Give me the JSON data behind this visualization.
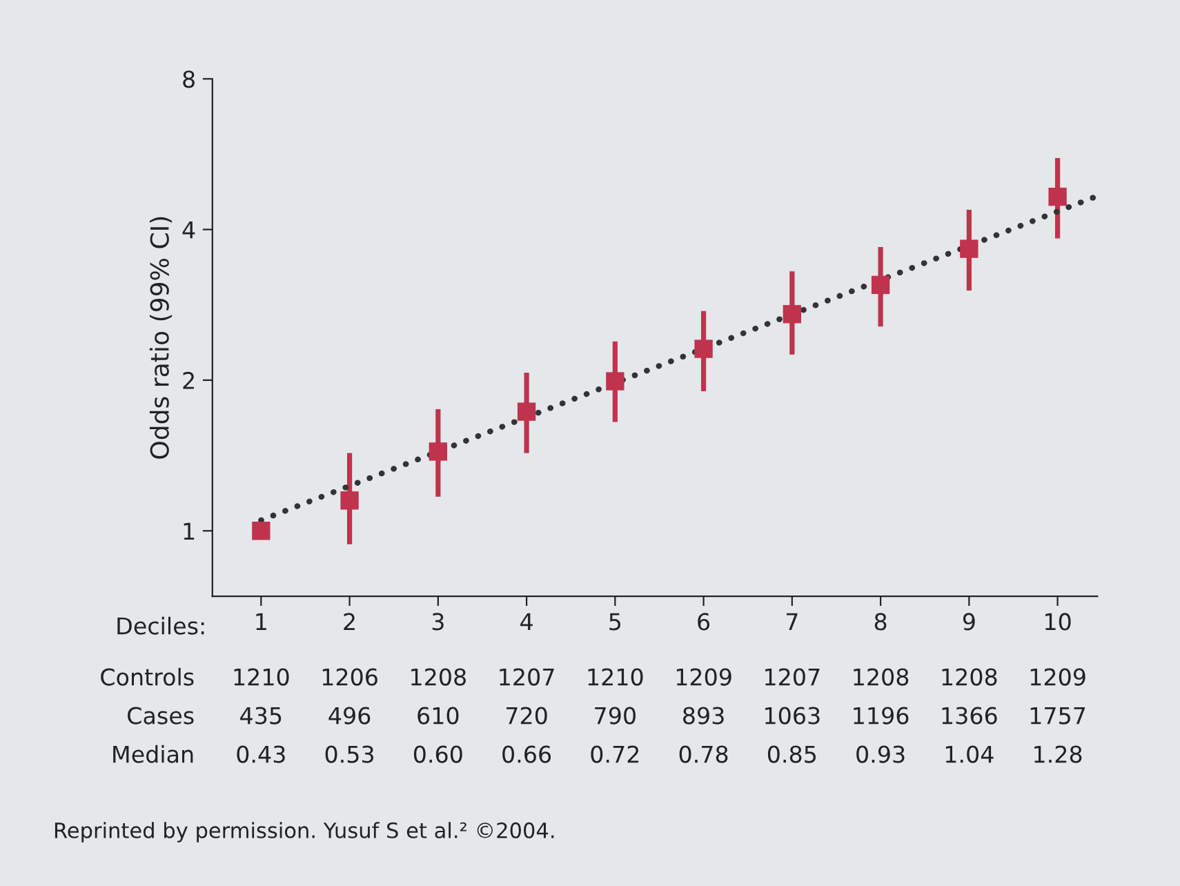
{
  "chart_data": {
    "type": "scatter",
    "xlabel": "Deciles:",
    "ylabel": "Odds ratio (99% CI)",
    "x": [
      1,
      2,
      3,
      4,
      5,
      6,
      7,
      8,
      9,
      10
    ],
    "xlim": [
      0.45,
      10.45
    ],
    "xticks": [
      1,
      2,
      3,
      4,
      5,
      6,
      7,
      8,
      9,
      10
    ],
    "ylim": [
      0.74,
      8
    ],
    "yticks": [
      1,
      2,
      4,
      8
    ],
    "log": "y",
    "grid": false,
    "marker": "square",
    "series": [
      {
        "color": "#c0334d",
        "values": [
          1.0,
          1.15,
          1.44,
          1.73,
          1.99,
          2.31,
          2.71,
          3.1,
          3.66,
          4.65
        ],
        "errors": [
          null,
          [
            0.94,
            1.43
          ],
          [
            1.17,
            1.75
          ],
          [
            1.43,
            2.07
          ],
          [
            1.65,
            2.39
          ],
          [
            1.9,
            2.75
          ],
          [
            2.25,
            3.3
          ],
          [
            2.56,
            3.69
          ],
          [
            3.02,
            4.38
          ],
          [
            3.84,
            5.56
          ]
        ]
      },
      {
        "type": "line",
        "color": "#333333",
        "x": [
          1,
          10.4
        ],
        "values": [
          1.05,
          4.63
        ],
        "line_style": "dotted",
        "marker": "none"
      }
    ],
    "annotations": [
      "Controls",
      "1210",
      "1206",
      "1208",
      "1207",
      "1210",
      "1209",
      "1207",
      "1208",
      "1208",
      "1209",
      "Cases",
      "435",
      "496",
      "610",
      "720",
      "790",
      "893",
      "1063",
      "1196",
      "1366",
      "1757",
      "Median",
      "0.43",
      "0.53",
      "0.60",
      "0.66",
      "0.72",
      "0.78",
      "0.85",
      "0.93",
      "1.04",
      "1.28",
      "Reprinted by permission. Yusuf S et al.² ©2004."
    ]
  }
}
